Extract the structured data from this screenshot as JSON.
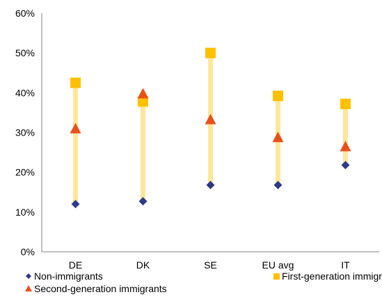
{
  "chart_data": {
    "type": "scatter",
    "categories": [
      "DE",
      "DK",
      "SE",
      "EU avg",
      "IT"
    ],
    "y_ticks": [
      "0%",
      "10%",
      "20%",
      "30%",
      "40%",
      "50%",
      "60%"
    ],
    "ylim": [
      0,
      60
    ],
    "y_unit": "%",
    "grid": false,
    "legend_position": "bottom",
    "range_bar_color": "#FFE699",
    "series": [
      {
        "name": "Non-immigrants",
        "marker": "diamond",
        "color": "#2E3A87",
        "values": [
          12,
          12.7,
          16.8,
          16.8,
          21.8
        ]
      },
      {
        "name": "First-generation immigrants",
        "marker": "square",
        "color": "#FFC000",
        "values": [
          42.5,
          37.8,
          50,
          39.2,
          37.2
        ]
      },
      {
        "name": "Second-generation immigrants",
        "marker": "triangle",
        "color": "#E8501A",
        "values": [
          31,
          39.8,
          33.3,
          28.8,
          26.5
        ]
      }
    ]
  }
}
